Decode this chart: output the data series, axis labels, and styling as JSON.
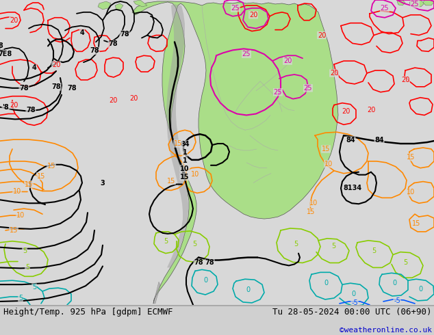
{
  "title_left": "Height/Temp. 925 hPa [gdpm] ECMWF",
  "title_right": "Tu 28-05-2024 00:00 UTC (06+90)",
  "credit": "©weatheronline.co.uk",
  "bg_color": "#d0d0d0",
  "sea_color": "#d8d8d8",
  "land_color": "#aade88",
  "land_color_dark": "#98c878",
  "title_fontsize": 9,
  "credit_fontsize": 8,
  "credit_color": "#0000cc",
  "figsize": [
    6.34,
    4.9
  ],
  "dpi": 100,
  "c_black": "#000000",
  "c_red": "#ff0000",
  "c_orange": "#ff8800",
  "c_magenta": "#dd00aa",
  "c_ygreen": "#88cc00",
  "c_cyan": "#00aaaa",
  "c_blue": "#0055ff",
  "c_gray": "#888888",
  "lfs": 7
}
